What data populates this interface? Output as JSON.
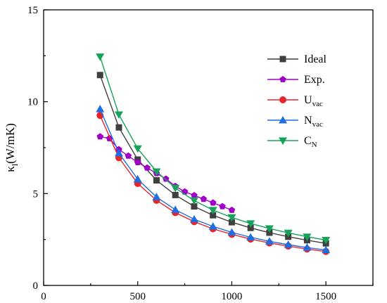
{
  "chart_data": {
    "type": "line",
    "title": "",
    "xlabel": "",
    "ylabel": "κl(W/mK)",
    "ylabel_main": "κ",
    "ylabel_sub": "l",
    "ylabel_rest": "(W/mK)",
    "xlim": [
      0,
      1750
    ],
    "ylim": [
      0,
      15
    ],
    "xticks": [
      0,
      500,
      1000,
      1500
    ],
    "yticks": [
      0,
      5,
      10,
      15
    ],
    "xtick_labels": [
      "0",
      "500",
      "1000",
      "1500"
    ],
    "ytick_labels": [
      "0",
      "5",
      "10",
      "15"
    ],
    "grid": false,
    "legend_position": "top-right",
    "series": [
      {
        "name": "Ideal",
        "name_main": "Ideal",
        "name_sub": "",
        "color": "#3f3f3f",
        "marker": "square",
        "x": [
          300,
          400,
          500,
          600,
          700,
          800,
          900,
          1000,
          1100,
          1200,
          1300,
          1400,
          1500
        ],
        "y": [
          11.45,
          8.6,
          6.85,
          5.72,
          4.92,
          4.3,
          3.82,
          3.44,
          3.13,
          2.87,
          2.65,
          2.46,
          2.29
        ]
      },
      {
        "name": "Exp.",
        "name_main": "Exp.",
        "name_sub": "",
        "color": "#a000c8",
        "marker": "pentagon",
        "x": [
          300,
          350,
          400,
          450,
          500,
          550,
          600,
          650,
          700,
          750,
          800,
          850,
          900,
          950,
          1000
        ],
        "y": [
          8.1,
          8.0,
          7.4,
          7.05,
          6.7,
          6.4,
          6.1,
          5.8,
          5.4,
          5.1,
          4.9,
          4.7,
          4.5,
          4.3,
          4.1
        ]
      },
      {
        "name": "Uvac",
        "name_main": "U",
        "name_sub": "vac",
        "color": "#e8262a",
        "marker": "circle",
        "x": [
          300,
          400,
          500,
          600,
          700,
          800,
          900,
          1000,
          1100,
          1200,
          1300,
          1400,
          1500
        ],
        "y": [
          9.25,
          6.95,
          5.55,
          4.63,
          3.96,
          3.47,
          3.08,
          2.78,
          2.52,
          2.31,
          2.14,
          1.98,
          1.85
        ]
      },
      {
        "name": "Nvac",
        "name_main": "N",
        "name_sub": "vac",
        "color": "#1f6fe0",
        "marker": "triangle-up",
        "x": [
          300,
          400,
          500,
          600,
          700,
          800,
          900,
          1000,
          1100,
          1200,
          1300,
          1400,
          1500
        ],
        "y": [
          9.6,
          7.2,
          5.78,
          4.81,
          4.12,
          3.6,
          3.21,
          2.89,
          2.62,
          2.4,
          2.22,
          2.06,
          1.93
        ]
      },
      {
        "name": "CN",
        "name_main": "C",
        "name_sub": "N",
        "color": "#15a35a",
        "marker": "triangle-down",
        "x": [
          300,
          400,
          500,
          600,
          700,
          800,
          900,
          1000,
          1100,
          1200,
          1300,
          1400,
          1500
        ],
        "y": [
          12.45,
          9.3,
          7.45,
          6.2,
          5.3,
          4.62,
          4.1,
          3.7,
          3.37,
          3.1,
          2.86,
          2.65,
          2.47
        ]
      }
    ]
  }
}
